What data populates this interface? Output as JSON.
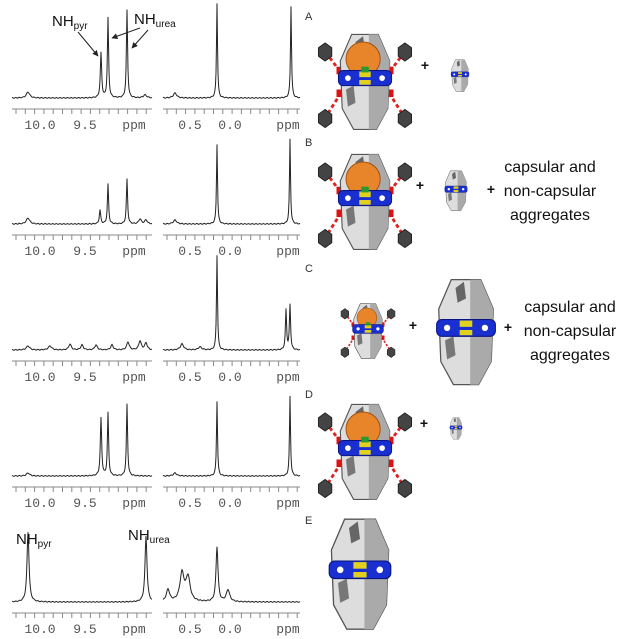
{
  "panels": [
    {
      "label": "A",
      "left_ticks": [
        "10.0",
        "9.5",
        "ppm"
      ],
      "right_ticks": [
        "0.5",
        "0.0",
        "ppm"
      ],
      "peak_labels": [
        {
          "main": "NH",
          "sub": "pyr"
        },
        {
          "main": "NH",
          "sub": "urea"
        }
      ],
      "plus": [
        "+"
      ]
    },
    {
      "label": "B",
      "left_ticks": [
        "10.0",
        "9.5",
        "ppm"
      ],
      "right_ticks": [
        "0.5",
        "0.0",
        "ppm"
      ],
      "plus": [
        "+",
        "+"
      ],
      "note": [
        "capsular and",
        "non-capsular",
        "aggregates"
      ]
    },
    {
      "label": "C",
      "left_ticks": [
        "10.0",
        "9.5",
        "ppm"
      ],
      "right_ticks": [
        "0.5",
        "0.0",
        "ppm"
      ],
      "plus": [
        "+",
        "+"
      ],
      "note": [
        "capsular and",
        "non-capsular",
        "aggregates"
      ]
    },
    {
      "label": "D",
      "left_ticks": [
        "10.0",
        "9.5",
        "ppm"
      ],
      "right_ticks": [
        "0.5",
        "0.0",
        "ppm"
      ],
      "plus": [
        "+"
      ]
    },
    {
      "label": "E",
      "left_ticks": [
        "10.0",
        "9.5",
        "ppm"
      ],
      "right_ticks": [
        "0.5",
        "0.0",
        "ppm"
      ],
      "peak_labels": [
        {
          "main": "NH",
          "sub": "pyr"
        },
        {
          "main": "NH",
          "sub": "urea"
        }
      ]
    }
  ]
}
